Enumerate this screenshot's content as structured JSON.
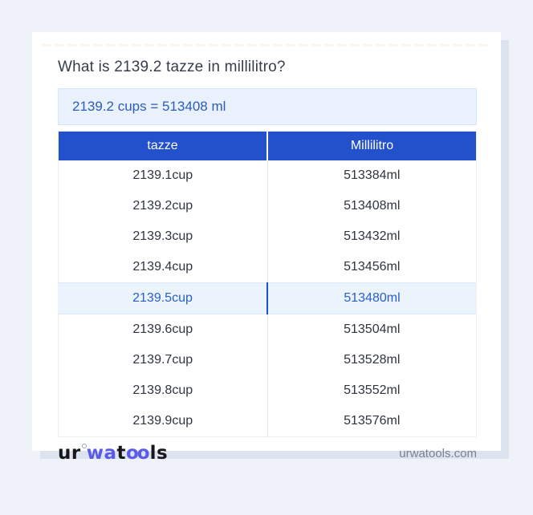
{
  "page": {
    "title": "What is 2139.2 tazze in millilitro?",
    "result": "2139.2 cups = 513408 ml",
    "footer_site": "urwatools.com"
  },
  "logo": {
    "part_ur": "ur",
    "part_wa": "wa",
    "part_t": "t",
    "part_oo": "oo",
    "part_ls": "ls"
  },
  "table": {
    "headers": [
      "tazze",
      "Millilitro"
    ],
    "rows": [
      {
        "cup": "2139.1cup",
        "ml": "513384ml",
        "highlight": false
      },
      {
        "cup": "2139.2cup",
        "ml": "513408ml",
        "highlight": false
      },
      {
        "cup": "2139.3cup",
        "ml": "513432ml",
        "highlight": false
      },
      {
        "cup": "2139.4cup",
        "ml": "513456ml",
        "highlight": false
      },
      {
        "cup": "2139.5cup",
        "ml": "513480ml",
        "highlight": true
      },
      {
        "cup": "2139.6cup",
        "ml": "513504ml",
        "highlight": false
      },
      {
        "cup": "2139.7cup",
        "ml": "513528ml",
        "highlight": false
      },
      {
        "cup": "2139.8cup",
        "ml": "513552ml",
        "highlight": false
      },
      {
        "cup": "2139.9cup",
        "ml": "513576ml",
        "highlight": false
      }
    ]
  },
  "colors": {
    "page_background": "#eff2f8",
    "card_shadow": "#dde4f0",
    "header_blue": "#2350cb",
    "result_box_bg": "#e9f1fc",
    "result_text_blue": "#2c5db9",
    "highlight_row_bg": "#ebf3fd",
    "highlight_divider_blue": "#1d50cf",
    "logo_blue": "#5a5be8"
  }
}
